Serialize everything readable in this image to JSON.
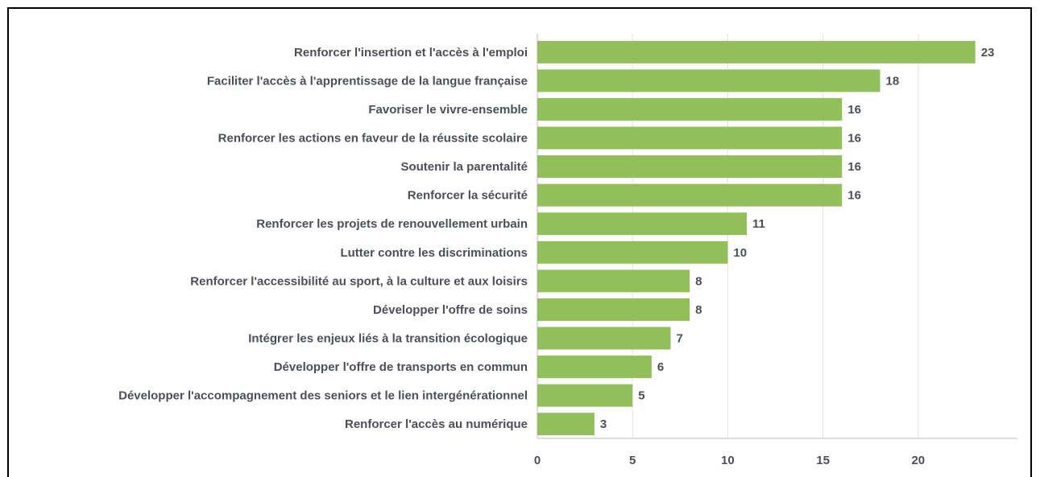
{
  "chart_data": {
    "type": "bar",
    "orientation": "horizontal",
    "categories": [
      "Renforcer l'insertion et l'accès à l'emploi",
      "Faciliter l'accès à l'apprentissage de la langue française",
      "Favoriser le vivre-ensemble",
      "Renforcer les actions en faveur de la réussite scolaire",
      "Soutenir la parentalité",
      "Renforcer la sécurité",
      "Renforcer les projets de renouvellement urbain",
      "Lutter contre les discriminations",
      "Renforcer l'accessibilité au sport, à la culture et aux loisirs",
      "Développer l'offre de soins",
      "Intégrer les enjeux liés à la transition écologique",
      "Développer l'offre de transports en commun",
      "Développer l'accompagnement des seniors et le lien intergénérationnel",
      "Renforcer l'accès au numérique"
    ],
    "values": [
      23,
      18,
      16,
      16,
      16,
      16,
      11,
      10,
      8,
      8,
      7,
      6,
      5,
      3
    ],
    "color": "#92bf5a",
    "xlim": [
      0,
      25
    ],
    "xticks": [
      0,
      5,
      10,
      15,
      20
    ],
    "grid": true
  }
}
